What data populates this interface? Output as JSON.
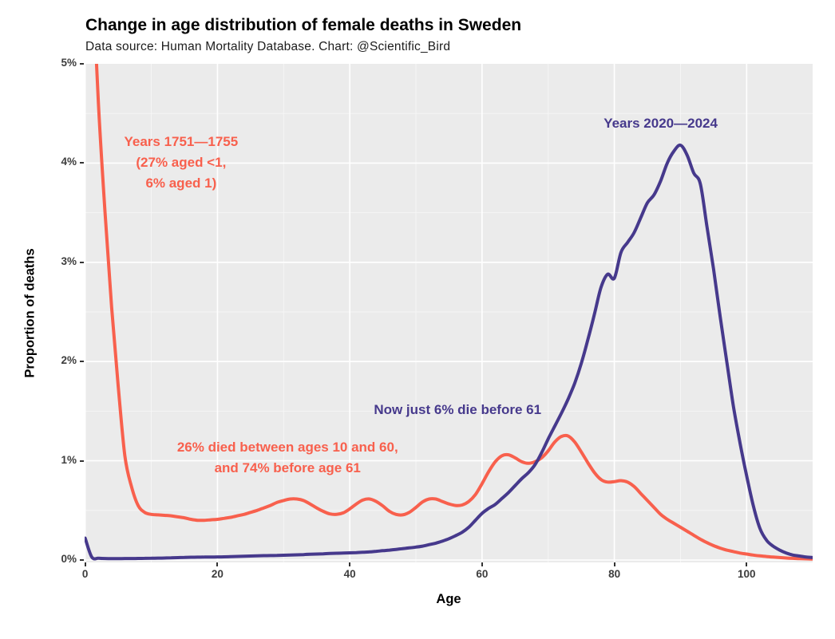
{
  "title": "Change in age distribution of female deaths in Sweden",
  "subtitle": "Data source: Human Mortality Database. Chart: @Scientific_Bird",
  "colors": {
    "series_1751": "#f8604d",
    "series_2020": "#46398c",
    "panel_background": "#ebebeb",
    "grid_major": "#ffffff",
    "grid_minor": "#f6f6f6",
    "tick_text": "#3d3d3d"
  },
  "x_axis": {
    "label": "Age",
    "ticks": [
      0,
      20,
      40,
      60,
      80,
      100
    ],
    "range": [
      0,
      110
    ]
  },
  "y_axis": {
    "label": "Proportion of deaths",
    "tick_labels": [
      "0%",
      "1%",
      "2%",
      "3%",
      "4%",
      "5%"
    ],
    "range_pct": [
      0,
      5
    ]
  },
  "chart_data": {
    "type": "line",
    "title": "Change in age distribution of female deaths in Sweden",
    "xlabel": "Age",
    "ylabel": "Proportion of deaths",
    "xlim": [
      0,
      110
    ],
    "ylim": [
      0,
      5
    ],
    "grid": "major+minor",
    "legend": "direct-labels",
    "ages": [
      0,
      1,
      2,
      3,
      4,
      5,
      6,
      7,
      8,
      9,
      10,
      11,
      12,
      13,
      14,
      15,
      16,
      17,
      18,
      19,
      20,
      21,
      22,
      23,
      24,
      25,
      26,
      27,
      28,
      29,
      30,
      31,
      32,
      33,
      34,
      35,
      36,
      37,
      38,
      39,
      40,
      41,
      42,
      43,
      44,
      45,
      46,
      47,
      48,
      49,
      50,
      51,
      52,
      53,
      54,
      55,
      56,
      57,
      58,
      59,
      60,
      61,
      62,
      63,
      64,
      65,
      66,
      67,
      68,
      69,
      70,
      71,
      72,
      73,
      74,
      75,
      76,
      77,
      78,
      79,
      80,
      81,
      82,
      83,
      84,
      85,
      86,
      87,
      88,
      89,
      90,
      91,
      92,
      93,
      94,
      95,
      96,
      97,
      98,
      99,
      100,
      101,
      102,
      103,
      104,
      105,
      106,
      107,
      108,
      109,
      110
    ],
    "series": [
      {
        "name": "Years 1751—1755",
        "color_key": "series_1751",
        "note": "clipped at top of panel; true values 27% at age <1 and 6% at age 1",
        "values_pct": [
          27,
          6,
          4.6,
          3.5,
          2.55,
          1.75,
          1.05,
          0.74,
          0.55,
          0.48,
          0.46,
          0.455,
          0.45,
          0.445,
          0.435,
          0.425,
          0.41,
          0.4,
          0.4,
          0.405,
          0.41,
          0.42,
          0.43,
          0.445,
          0.46,
          0.48,
          0.5,
          0.525,
          0.55,
          0.58,
          0.6,
          0.615,
          0.615,
          0.6,
          0.565,
          0.525,
          0.49,
          0.465,
          0.46,
          0.475,
          0.515,
          0.565,
          0.605,
          0.615,
          0.59,
          0.545,
          0.49,
          0.46,
          0.455,
          0.48,
          0.53,
          0.585,
          0.615,
          0.615,
          0.59,
          0.565,
          0.55,
          0.555,
          0.59,
          0.66,
          0.77,
          0.89,
          0.99,
          1.05,
          1.06,
          1.03,
          0.99,
          0.975,
          0.99,
          1.03,
          1.1,
          1.19,
          1.245,
          1.25,
          1.19,
          1.09,
          0.98,
          0.88,
          0.81,
          0.785,
          0.79,
          0.8,
          0.785,
          0.74,
          0.67,
          0.6,
          0.53,
          0.46,
          0.41,
          0.37,
          0.33,
          0.29,
          0.25,
          0.21,
          0.175,
          0.145,
          0.12,
          0.1,
          0.085,
          0.07,
          0.06,
          0.05,
          0.042,
          0.035,
          0.03,
          0.025,
          0.02,
          0.017,
          0.014,
          0.012,
          0.01
        ]
      },
      {
        "name": "Years 2020—2024",
        "color_key": "series_2020",
        "values_pct": [
          0.22,
          0.03,
          0.018,
          0.015,
          0.014,
          0.014,
          0.015,
          0.015,
          0.016,
          0.017,
          0.018,
          0.019,
          0.02,
          0.022,
          0.024,
          0.026,
          0.028,
          0.029,
          0.03,
          0.03,
          0.031,
          0.032,
          0.034,
          0.036,
          0.038,
          0.04,
          0.042,
          0.044,
          0.045,
          0.046,
          0.048,
          0.05,
          0.052,
          0.055,
          0.058,
          0.06,
          0.063,
          0.066,
          0.068,
          0.07,
          0.072,
          0.075,
          0.078,
          0.082,
          0.088,
          0.094,
          0.1,
          0.107,
          0.115,
          0.122,
          0.13,
          0.14,
          0.155,
          0.17,
          0.19,
          0.215,
          0.245,
          0.28,
          0.33,
          0.4,
          0.47,
          0.52,
          0.56,
          0.62,
          0.68,
          0.75,
          0.82,
          0.88,
          0.96,
          1.08,
          1.22,
          1.35,
          1.48,
          1.62,
          1.78,
          1.98,
          2.22,
          2.48,
          2.75,
          2.88,
          2.84,
          3.1,
          3.2,
          3.3,
          3.45,
          3.6,
          3.68,
          3.82,
          4.0,
          4.12,
          4.18,
          4.08,
          3.9,
          3.79,
          3.36,
          2.93,
          2.45,
          2.0,
          1.55,
          1.18,
          0.85,
          0.55,
          0.32,
          0.2,
          0.14,
          0.1,
          0.07,
          0.05,
          0.04,
          0.03,
          0.025
        ]
      }
    ],
    "annotations": [
      {
        "id": "label-series-1751",
        "color_key": "series_1751",
        "x_age": 14.5,
        "y_pct": 4.0,
        "lines": [
          "Years 1751—1755",
          "(27% aged <1,",
          "6% aged 1)"
        ]
      },
      {
        "id": "label-series-2020",
        "color_key": "series_2020",
        "x_age": 87.0,
        "y_pct": 4.4,
        "lines": [
          "Years 2020—2024"
        ]
      },
      {
        "id": "note-now-just-6pct",
        "color_key": "series_2020",
        "x_age": 56.3,
        "y_pct": 1.51,
        "lines": [
          "Now just 6% die before 61"
        ]
      },
      {
        "id": "note-26pct-died",
        "color_key": "series_1751",
        "x_age": 30.6,
        "y_pct": 1.03,
        "lines": [
          "26% died between ages 10 and 60,",
          "and 74% before age 61"
        ]
      }
    ]
  }
}
